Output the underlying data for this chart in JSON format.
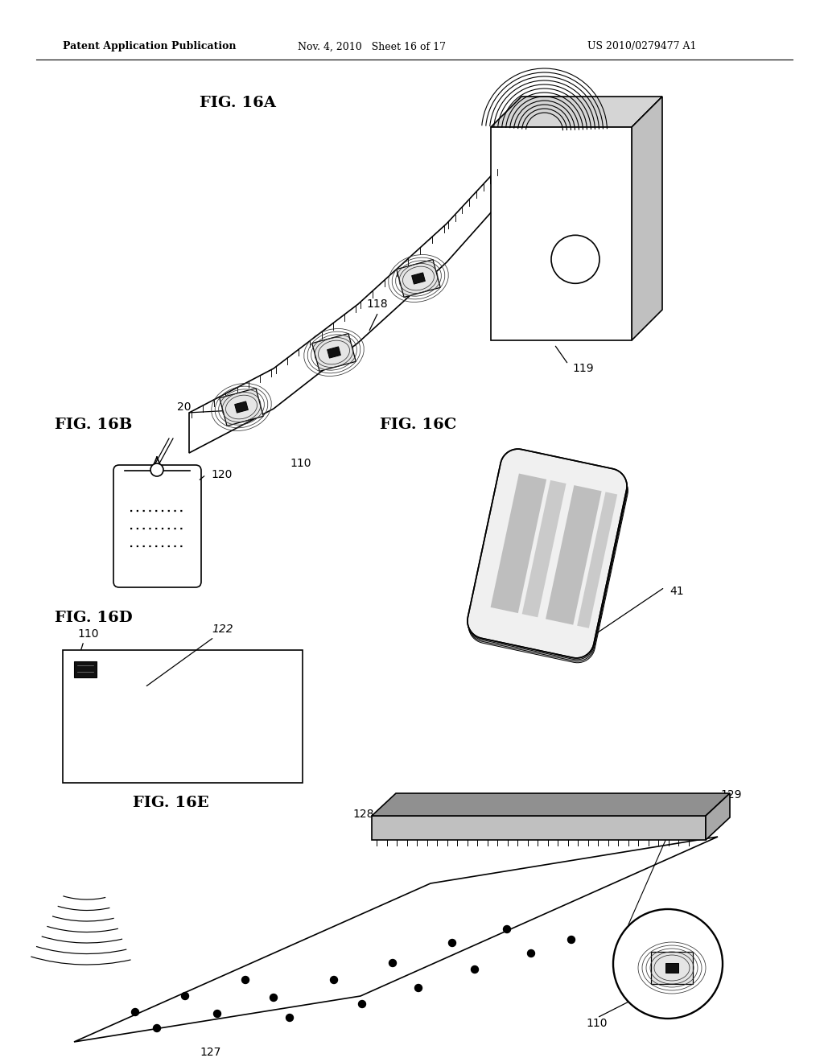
{
  "bg_color": "#ffffff",
  "header_left": "Patent Application Publication",
  "header_mid": "Nov. 4, 2010   Sheet 16 of 17",
  "header_right": "US 2010/0279477 A1",
  "fig16A_label": "FIG. 16A",
  "fig16B_label": "FIG. 16B",
  "fig16C_label": "FIG. 16C",
  "fig16D_label": "FIG. 16D",
  "fig16E_label": "FIG. 16E",
  "label_20": "20",
  "label_110a": "110",
  "label_110b": "110",
  "label_110c": "110",
  "label_118": "118",
  "label_119": "119",
  "label_120": "120",
  "label_41": "41",
  "label_122": "122",
  "label_127": "127",
  "label_128": "128",
  "label_129": "129"
}
